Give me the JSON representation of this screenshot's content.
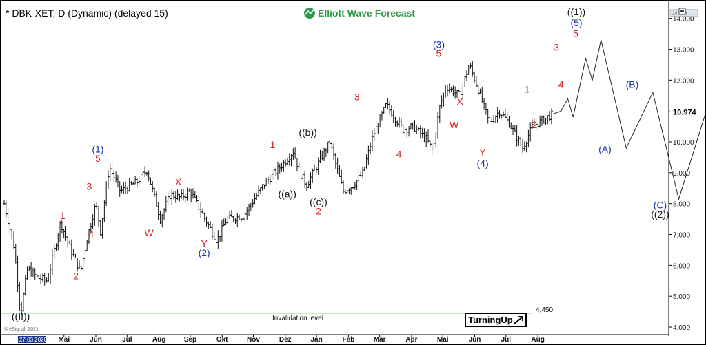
{
  "header": {
    "symbol_title": "* DBK-XET, D (Dynamic) (delayed 15)",
    "brand": "Elliott Wave Forecast"
  },
  "price_axis": {
    "current_price": "10.974",
    "top_price": "14.179"
  },
  "invalidation": {
    "label": "Invalidation level",
    "value": "4,450"
  },
  "footer": {
    "copyright": "© eSignal, 2021",
    "start_date": "27.03.2020",
    "turningup": "TurningUp"
  },
  "colors": {
    "red": "#cc2222",
    "blue": "#1a35a8",
    "brand_green": "#2e9a48",
    "invalidation_line": "#8fd18f"
  },
  "chart_data": {
    "type": "ohlc",
    "title": "* DBK-XET, D (Dynamic) (delayed 15)",
    "y_ticks": [
      4.0,
      5.0,
      6.0,
      7.0,
      8.0,
      9.0,
      10.0,
      11.0,
      12.0,
      13.0,
      14.0
    ],
    "y_tick_labels": [
      "4.000",
      "5.000",
      "6.000",
      "7.000",
      "8.000",
      "9.000",
      "10.000",
      "11.000",
      "12.000",
      "13.000",
      "14.000"
    ],
    "ylim": [
      3.8,
      14.55
    ],
    "x_months": [
      {
        "label": "Mai",
        "t": 0.09
      },
      {
        "label": "Jun",
        "t": 0.138
      },
      {
        "label": "Jul",
        "t": 0.185
      },
      {
        "label": "Aug",
        "t": 0.233
      },
      {
        "label": "Sep",
        "t": 0.28
      },
      {
        "label": "Okt",
        "t": 0.328
      },
      {
        "label": "Nov",
        "t": 0.375
      },
      {
        "label": "Dez",
        "t": 0.423
      },
      {
        "label": "Jan",
        "t": 0.47
      },
      {
        "label": "Feb",
        "t": 0.518
      },
      {
        "label": "Mär",
        "t": 0.565
      },
      {
        "label": "Apr",
        "t": 0.613
      },
      {
        "label": "Mai",
        "t": 0.66
      },
      {
        "label": "Jun",
        "t": 0.708
      },
      {
        "label": "Jul",
        "t": 0.755
      },
      {
        "label": "Aug",
        "t": 0.803
      }
    ],
    "price_path": [
      [
        0.0,
        8.0
      ],
      [
        0.015,
        6.6
      ],
      [
        0.025,
        4.45
      ],
      [
        0.035,
        5.9
      ],
      [
        0.05,
        5.6
      ],
      [
        0.065,
        5.5
      ],
      [
        0.085,
        7.4
      ],
      [
        0.1,
        6.5
      ],
      [
        0.115,
        5.8
      ],
      [
        0.125,
        6.9
      ],
      [
        0.138,
        8.0
      ],
      [
        0.145,
        7.1
      ],
      [
        0.158,
        9.2
      ],
      [
        0.175,
        8.4
      ],
      [
        0.2,
        8.7
      ],
      [
        0.215,
        9.1
      ],
      [
        0.235,
        7.5
      ],
      [
        0.25,
        8.3
      ],
      [
        0.265,
        8.2
      ],
      [
        0.28,
        8.4
      ],
      [
        0.29,
        8.0
      ],
      [
        0.32,
        6.8
      ],
      [
        0.335,
        7.5
      ],
      [
        0.36,
        7.6
      ],
      [
        0.39,
        8.6
      ],
      [
        0.42,
        9.3
      ],
      [
        0.435,
        9.7
      ],
      [
        0.445,
        9.0
      ],
      [
        0.455,
        8.6
      ],
      [
        0.475,
        9.4
      ],
      [
        0.49,
        10.0
      ],
      [
        0.51,
        8.4
      ],
      [
        0.525,
        8.6
      ],
      [
        0.54,
        9.0
      ],
      [
        0.555,
        10.2
      ],
      [
        0.575,
        11.2
      ],
      [
        0.6,
        10.4
      ],
      [
        0.615,
        10.5
      ],
      [
        0.635,
        10.1
      ],
      [
        0.645,
        9.7
      ],
      [
        0.655,
        11.1
      ],
      [
        0.665,
        11.8
      ],
      [
        0.685,
        11.5
      ],
      [
        0.7,
        12.5
      ],
      [
        0.715,
        11.6
      ],
      [
        0.73,
        10.6
      ],
      [
        0.745,
        11.0
      ],
      [
        0.76,
        10.6
      ],
      [
        0.78,
        9.8
      ],
      [
        0.795,
        10.5
      ],
      [
        0.81,
        10.7
      ],
      [
        0.825,
        10.9
      ]
    ],
    "projection": [
      [
        10.9,
        10.9
      ],
      [
        11.2,
        11.5
      ],
      [
        10.8,
        12.7
      ],
      [
        12.0,
        13.3
      ],
      [
        9.8,
        11.6
      ],
      [
        8.15,
        14.0
      ]
    ],
    "wave_labels": [
      {
        "text": "((II))",
        "x": 0.025,
        "price": 4.25,
        "color": "black"
      },
      {
        "text": "1",
        "x": 0.088,
        "price": 7.5,
        "color": "red"
      },
      {
        "text": "2",
        "x": 0.108,
        "price": 5.55,
        "color": "red"
      },
      {
        "text": "3",
        "x": 0.128,
        "price": 8.45,
        "color": "red"
      },
      {
        "text": "4",
        "x": 0.131,
        "price": 6.9,
        "color": "red"
      },
      {
        "text": "5",
        "x": 0.141,
        "price": 9.35,
        "color": "red"
      },
      {
        "text": "(1)",
        "x": 0.141,
        "price": 9.65,
        "color": "blue"
      },
      {
        "text": "W",
        "x": 0.218,
        "price": 6.95,
        "color": "red"
      },
      {
        "text": "X",
        "x": 0.262,
        "price": 8.6,
        "color": "red"
      },
      {
        "text": "Y",
        "x": 0.301,
        "price": 6.6,
        "color": "red"
      },
      {
        "text": "(2)",
        "x": 0.301,
        "price": 6.3,
        "color": "blue"
      },
      {
        "text": "1",
        "x": 0.404,
        "price": 9.8,
        "color": "red"
      },
      {
        "text": "((a))",
        "x": 0.426,
        "price": 8.2,
        "color": "black"
      },
      {
        "text": "((b))",
        "x": 0.457,
        "price": 10.2,
        "color": "black"
      },
      {
        "text": "((c))",
        "x": 0.473,
        "price": 7.95,
        "color": "black"
      },
      {
        "text": "2",
        "x": 0.473,
        "price": 7.65,
        "color": "red"
      },
      {
        "text": "3",
        "x": 0.531,
        "price": 11.35,
        "color": "red"
      },
      {
        "text": "4",
        "x": 0.594,
        "price": 9.5,
        "color": "red"
      },
      {
        "text": "5",
        "x": 0.654,
        "price": 12.75,
        "color": "red"
      },
      {
        "text": "(3)",
        "x": 0.654,
        "price": 13.05,
        "color": "blue"
      },
      {
        "text": "X",
        "x": 0.686,
        "price": 11.2,
        "color": "red"
      },
      {
        "text": "W",
        "x": 0.677,
        "price": 10.45,
        "color": "red"
      },
      {
        "text": "Y",
        "x": 0.72,
        "price": 9.55,
        "color": "red"
      },
      {
        "text": "(4)",
        "x": 0.72,
        "price": 9.2,
        "color": "blue"
      },
      {
        "text": "1",
        "x": 0.787,
        "price": 11.6,
        "color": "red"
      },
      {
        "text": "2",
        "x": 0.798,
        "price": 10.45,
        "color": "red"
      },
      {
        "text": "3",
        "x": 0.831,
        "price": 12.95,
        "color": "red"
      },
      {
        "text": "4",
        "x": 0.838,
        "price": 11.75,
        "color": "red"
      },
      {
        "text": "5",
        "x": 0.86,
        "price": 13.4,
        "color": "red"
      },
      {
        "text": "(5)",
        "x": 0.861,
        "price": 13.75,
        "color": "blue"
      },
      {
        "text": "((1))",
        "x": 0.861,
        "price": 14.1,
        "color": "black"
      },
      {
        "text": "(A)",
        "x": 0.904,
        "price": 9.65,
        "color": "blue"
      },
      {
        "text": "(B)",
        "x": 0.945,
        "price": 11.75,
        "color": "blue"
      },
      {
        "text": "(C)",
        "x": 0.987,
        "price": 7.85,
        "color": "blue"
      },
      {
        "text": "((2))",
        "x": 0.987,
        "price": 7.55,
        "color": "black"
      }
    ],
    "invalidation_price": 4.45,
    "grid": false,
    "legend": "none"
  }
}
